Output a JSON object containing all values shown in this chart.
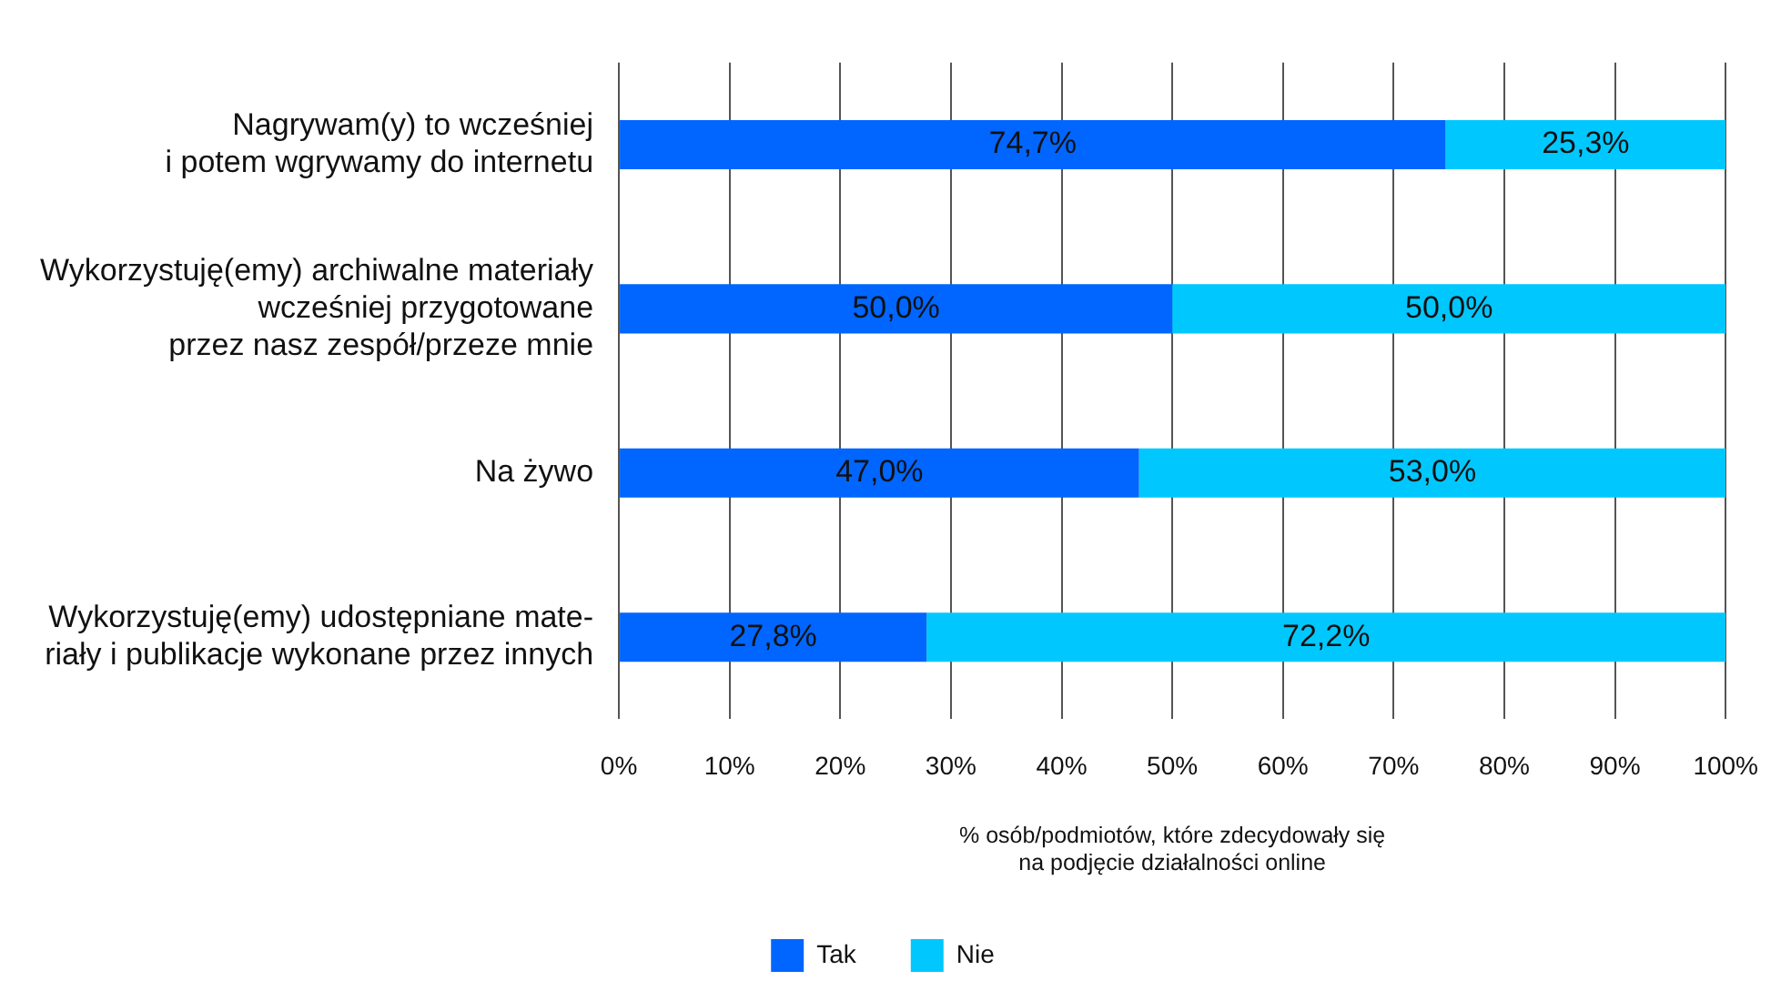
{
  "chart_data": {
    "type": "bar",
    "orientation": "horizontal",
    "stacked": true,
    "categories": [
      "Nagrywam(y) to wcześniej\ni potem wgrywamy do internetu",
      "Wykorzystuję(emy) archiwalne materiały\nwcześniej przygotowane\nprzez nasz zespół/przeze mnie",
      "Na żywo",
      "Wykorzystuję(emy) udostępniane mate-\nriały i publikacje wykonane przez innych"
    ],
    "series": [
      {
        "name": "Tak",
        "color": "#0066ff",
        "values": [
          74.7,
          50.0,
          47.0,
          27.8
        ],
        "value_labels": [
          "74,7%",
          "50,0%",
          "47,0%",
          "27,8%"
        ]
      },
      {
        "name": "Nie",
        "color": "#00c8ff",
        "values": [
          25.3,
          50.0,
          53.0,
          72.2
        ],
        "value_labels": [
          "25,3%",
          "50,0%",
          "53,0%",
          "72,2%"
        ]
      }
    ],
    "xlim": [
      0,
      100
    ],
    "xticks": [
      {
        "value": 0,
        "label": "0%"
      },
      {
        "value": 10,
        "label": "10%"
      },
      {
        "value": 20,
        "label": "20%"
      },
      {
        "value": 30,
        "label": "30%"
      },
      {
        "value": 40,
        "label": "40%"
      },
      {
        "value": 50,
        "label": "50%"
      },
      {
        "value": 60,
        "label": "60%"
      },
      {
        "value": 70,
        "label": "70%"
      },
      {
        "value": 80,
        "label": "80%"
      },
      {
        "value": 90,
        "label": "90%"
      },
      {
        "value": 100,
        "label": "100%"
      }
    ],
    "xlabel": "% osób/podmiotów, które zdecydowały się\nna podjęcie działalności online",
    "grid": "x",
    "legend": "bottom"
  }
}
